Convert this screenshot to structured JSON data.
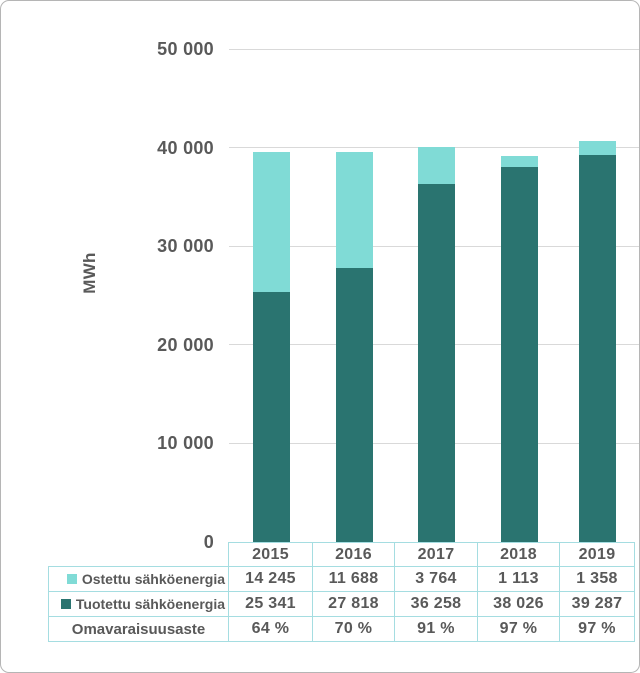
{
  "chart_data": {
    "type": "bar",
    "stacked": true,
    "title": "",
    "xlabel": "",
    "ylabel": "MWh",
    "ylim": [
      0,
      50000
    ],
    "yticks": [
      0,
      10000,
      20000,
      30000,
      40000,
      50000
    ],
    "ytick_labels": [
      "0",
      "10 000",
      "20 000",
      "30 000",
      "40 000",
      "50 000"
    ],
    "grid": true,
    "legend_position": "data-table-left-column",
    "categories": [
      "2015",
      "2016",
      "2017",
      "2018",
      "2019"
    ],
    "series": [
      {
        "name": "Ostettu sähköenergia",
        "key": "ostettu",
        "color": "#80dbd6",
        "values": [
          14245,
          11688,
          3764,
          1113,
          1358
        ]
      },
      {
        "name": "Tuotettu sähköenergia",
        "key": "tuotettu",
        "color": "#2a7470",
        "values": [
          25341,
          27818,
          36258,
          38026,
          39287
        ]
      }
    ],
    "self_sufficiency_pct": [
      64,
      70,
      91,
      97,
      97
    ]
  },
  "data_table": {
    "header": [
      "2015",
      "2016",
      "2017",
      "2018",
      "2019"
    ],
    "rows": [
      {
        "label": "Ostettu sähköenergia",
        "key": "ostettu",
        "swatch_color": "#80dbd6",
        "values": [
          "14 245",
          "11 688",
          "3 764",
          "1 113",
          "1 358"
        ]
      },
      {
        "label": "Tuotettu sähköenergia",
        "key": "tuotettu",
        "swatch_color": "#2a7470",
        "values": [
          "25 341",
          "27 818",
          "36 258",
          "38 026",
          "39 287"
        ]
      },
      {
        "label": "Omavaraisuusaste",
        "key": "omavaraisuusaste",
        "swatch_color": null,
        "values": [
          "64 %",
          "70 %",
          "91 %",
          "97 %",
          "97 %"
        ]
      }
    ]
  },
  "colors": {
    "ostettu": "#80dbd6",
    "tuotettu": "#2a7470",
    "table_border": "#a5dde1",
    "gridline": "#d9d9d9",
    "text": "#595959",
    "frame_border": "#b5b5b5"
  }
}
